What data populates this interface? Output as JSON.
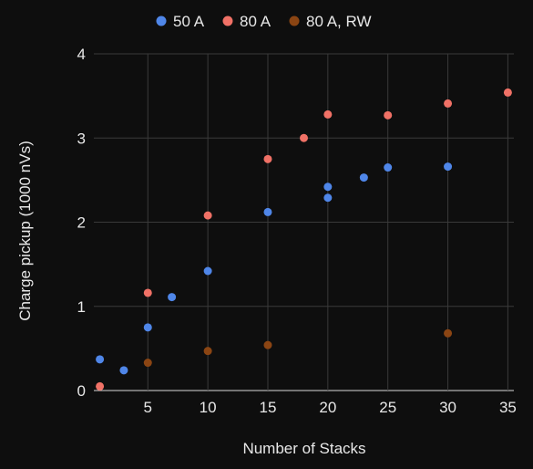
{
  "chart_data": {
    "type": "scatter",
    "title": "",
    "xlabel": "Number of Stacks",
    "ylabel": "Charge pickup (1000 nVs)",
    "xlim": [
      0.5,
      35.5
    ],
    "ylim": [
      0,
      4
    ],
    "xticks": [
      5,
      10,
      15,
      20,
      25,
      30,
      35
    ],
    "yticks": [
      0,
      1,
      2,
      3,
      4
    ],
    "grid": true,
    "legend_position": "top",
    "series": [
      {
        "name": "50 A",
        "color": "#4f86e8",
        "points": [
          {
            "x": 1,
            "y": 0.37
          },
          {
            "x": 3,
            "y": 0.24
          },
          {
            "x": 5,
            "y": 0.75
          },
          {
            "x": 7,
            "y": 1.11
          },
          {
            "x": 10,
            "y": 1.42
          },
          {
            "x": 15,
            "y": 2.12
          },
          {
            "x": 20,
            "y": 2.29
          },
          {
            "x": 20,
            "y": 2.42
          },
          {
            "x": 23,
            "y": 2.53
          },
          {
            "x": 25,
            "y": 2.65
          },
          {
            "x": 30,
            "y": 2.66
          }
        ]
      },
      {
        "name": "80 A",
        "color": "#f07166",
        "points": [
          {
            "x": 1,
            "y": 0.05
          },
          {
            "x": 5,
            "y": 1.16
          },
          {
            "x": 10,
            "y": 2.08
          },
          {
            "x": 15,
            "y": 2.75
          },
          {
            "x": 18,
            "y": 3.0
          },
          {
            "x": 20,
            "y": 3.28
          },
          {
            "x": 25,
            "y": 3.27
          },
          {
            "x": 30,
            "y": 3.41
          },
          {
            "x": 35,
            "y": 3.54
          }
        ]
      },
      {
        "name": "80 A, RW",
        "color": "#8b4513",
        "points": [
          {
            "x": 5,
            "y": 0.33
          },
          {
            "x": 10,
            "y": 0.47
          },
          {
            "x": 15,
            "y": 0.54
          },
          {
            "x": 30,
            "y": 0.68
          }
        ]
      }
    ]
  }
}
